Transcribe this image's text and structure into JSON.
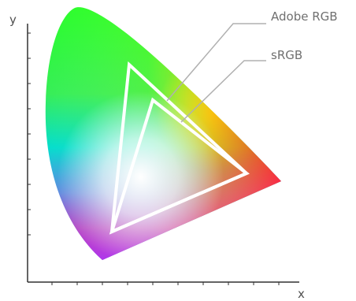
{
  "diagram": {
    "axes": {
      "x_label": "x",
      "y_label": "y"
    },
    "labels": {
      "adobe_rgb": "Adobe RGB",
      "srgb": "sRGB"
    },
    "colors": {
      "axis": "#303030",
      "leader_line": "#b0b0b0",
      "gamut_outline": "#ffffff"
    }
  }
}
